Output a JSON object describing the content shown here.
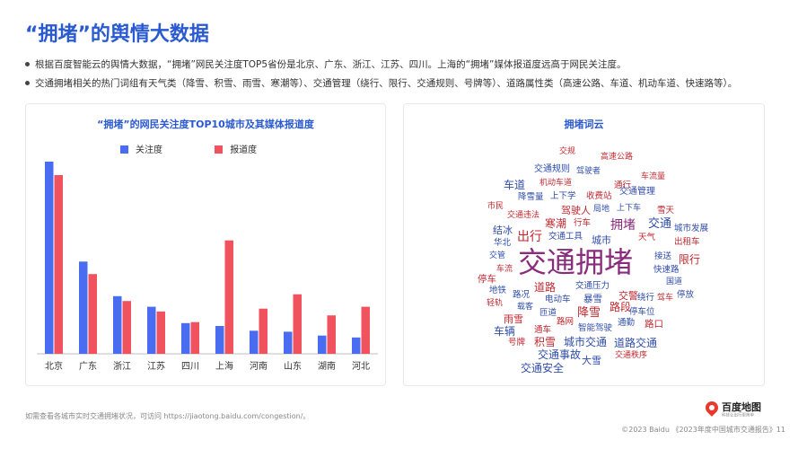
{
  "page": {
    "title": "“拥堵”的舆情大数据",
    "bullets": [
      "根据百度智能云的舆情大数据，“拥堵”网民关注度TOP5省份是北京、广东、浙江、江苏、四川。上海的“拥堵”媒体报道度远高于网民关注度。",
      "交通拥堵相关的热门词组有天气类（降雪、积雪、雨雪、寒潮等）、交通管理（绕行、限行、交通规则、号牌等）、道路属性类（高速公路、车道、机动车道、快速路等）。"
    ],
    "footnote": "如需查看各城市实时交通拥堵状况，可访问 https://jiaotong.baidu.com/congestion/。",
    "copyright": "©2023 Baidu 《2023年度中国城市交通报告》11",
    "logo_text": "百度地图",
    "logo_sub": "科技让出行更简单"
  },
  "colors": {
    "attention": "#4a6cf0",
    "media": "#f0535e",
    "accent": "#2a5ad0"
  },
  "chart_data": {
    "type": "bar",
    "title": "“拥堵”的网民关注度TOP10城市及其媒体报道度",
    "categories": [
      "北京",
      "广东",
      "浙江",
      "江苏",
      "四川",
      "上海",
      "河南",
      "山东",
      "湖南",
      "河北"
    ],
    "series": [
      {
        "name": "关注度",
        "values": [
          100,
          48,
          30,
          24.5,
          16,
          14.5,
          12,
          11.5,
          9.5,
          8.5
        ]
      },
      {
        "name": "报道度",
        "values": [
          93,
          41.5,
          27.5,
          22,
          16.5,
          59,
          23.5,
          31,
          20,
          24.5
        ]
      }
    ],
    "ylim": [
      0,
      100
    ],
    "legend_position": "top"
  },
  "wordcloud": {
    "title": "拥堵词云",
    "words": [
      {
        "text": "交规",
        "color": "#c0282f",
        "size": 9
      },
      {
        "text": "高速公路",
        "color": "#c0282f",
        "size": 9
      },
      {
        "text": "交通规则",
        "color": "#2f4da8",
        "size": 10
      },
      {
        "text": "驾驶者",
        "color": "#2f4da8",
        "size": 9
      },
      {
        "text": "车流量",
        "color": "#c0282f",
        "size": 9
      },
      {
        "text": "机动车道",
        "color": "#c0282f",
        "size": 9
      },
      {
        "text": "通行",
        "color": "#c0282f",
        "size": 9.5
      },
      {
        "text": "车道",
        "color": "#2f4da8",
        "size": 12
      },
      {
        "text": "交通管理",
        "color": "#2f4da8",
        "size": 10
      },
      {
        "text": "降雪量",
        "color": "#2f4da8",
        "size": 9.5
      },
      {
        "text": "上下学",
        "color": "#2f4da8",
        "size": 9.5
      },
      {
        "text": "收费站",
        "color": "#c0282f",
        "size": 9.5
      },
      {
        "text": "市民",
        "color": "#c0282f",
        "size": 9
      },
      {
        "text": "驾驶人",
        "color": "#c0282f",
        "size": 11
      },
      {
        "text": "局地",
        "color": "#2f4da8",
        "size": 9
      },
      {
        "text": "上下车",
        "color": "#2f4da8",
        "size": 9
      },
      {
        "text": "雪天",
        "color": "#c0282f",
        "size": 9.5
      },
      {
        "text": "交通违法",
        "color": "#c0282f",
        "size": 9
      },
      {
        "text": "寒潮",
        "color": "#c0282f",
        "size": 12
      },
      {
        "text": "行车",
        "color": "#c0282f",
        "size": 9.5
      },
      {
        "text": "拥堵",
        "color": "#8a2b7d",
        "size": 14
      },
      {
        "text": "交通",
        "color": "#2f4da8",
        "size": 13
      },
      {
        "text": "结冰",
        "color": "#2f4da8",
        "size": 11
      },
      {
        "text": "城市发展",
        "color": "#2f4da8",
        "size": 9.5
      },
      {
        "text": "出行",
        "color": "#c0282f",
        "size": 14
      },
      {
        "text": "交通工具",
        "color": "#2f4da8",
        "size": 9.5
      },
      {
        "text": "城市",
        "color": "#2f4da8",
        "size": 11
      },
      {
        "text": "天气",
        "color": "#c0282f",
        "size": 9.5
      },
      {
        "text": "华北",
        "color": "#2f4da8",
        "size": 9.5
      },
      {
        "text": "出租车",
        "color": "#c0282f",
        "size": 9.5
      },
      {
        "text": "交管",
        "color": "#2f4da8",
        "size": 9
      },
      {
        "text": "交通拥堵",
        "color": "#8a2b7d",
        "size": 32
      },
      {
        "text": "接送",
        "color": "#2f4da8",
        "size": 9.5
      },
      {
        "text": "限行",
        "color": "#c0282f",
        "size": 12
      },
      {
        "text": "车流",
        "color": "#c0282f",
        "size": 9
      },
      {
        "text": "快速路",
        "color": "#2f4da8",
        "size": 9.5
      },
      {
        "text": "停车",
        "color": "#c0282f",
        "size": 10.5
      },
      {
        "text": "国道",
        "color": "#2f4da8",
        "size": 9
      },
      {
        "text": "地铁",
        "color": "#2f4da8",
        "size": 9.5
      },
      {
        "text": "道路",
        "color": "#c0282f",
        "size": 12
      },
      {
        "text": "交通压力",
        "color": "#2f4da8",
        "size": 9.5
      },
      {
        "text": "交警",
        "color": "#c0282f",
        "size": 11
      },
      {
        "text": "绕行",
        "color": "#2f4da8",
        "size": 9.5
      },
      {
        "text": "驾车",
        "color": "#c0282f",
        "size": 9
      },
      {
        "text": "停放",
        "color": "#2f4da8",
        "size": 9.5
      },
      {
        "text": "路况",
        "color": "#2f4da8",
        "size": 9.5
      },
      {
        "text": "电动车",
        "color": "#2f4da8",
        "size": 9.5
      },
      {
        "text": "暴雪",
        "color": "#2f4da8",
        "size": 10.5
      },
      {
        "text": "轻轨",
        "color": "#c0282f",
        "size": 9
      },
      {
        "text": "载客",
        "color": "#2f4da8",
        "size": 9
      },
      {
        "text": "路段",
        "color": "#c0282f",
        "size": 12
      },
      {
        "text": "停车位",
        "color": "#2f4da8",
        "size": 9.5
      },
      {
        "text": "雨雪",
        "color": "#c0282f",
        "size": 11
      },
      {
        "text": "匝道",
        "color": "#2f4da8",
        "size": 9.5
      },
      {
        "text": "降雪",
        "color": "#c0282f",
        "size": 13
      },
      {
        "text": "路网",
        "color": "#c0282f",
        "size": 9.5
      },
      {
        "text": "通勤",
        "color": "#2f4da8",
        "size": 9.5
      },
      {
        "text": "路口",
        "color": "#c0282f",
        "size": 10.5
      },
      {
        "text": "车辆",
        "color": "#2f4da8",
        "size": 12
      },
      {
        "text": "通车",
        "color": "#c0282f",
        "size": 9.5
      },
      {
        "text": "智能驾驶",
        "color": "#2f4da8",
        "size": 9.5
      },
      {
        "text": "号牌",
        "color": "#c0282f",
        "size": 9.5
      },
      {
        "text": "积雪",
        "color": "#c0282f",
        "size": 12
      },
      {
        "text": "城市交通",
        "color": "#2f4da8",
        "size": 12
      },
      {
        "text": "道路交通",
        "color": "#2f4da8",
        "size": 12
      },
      {
        "text": "交通事故",
        "color": "#2f4da8",
        "size": 12
      },
      {
        "text": "大雪",
        "color": "#2f4da8",
        "size": 11
      },
      {
        "text": "交通秩序",
        "color": "#c0282f",
        "size": 9
      },
      {
        "text": "交通安全",
        "color": "#2f4da8",
        "size": 12
      }
    ]
  }
}
